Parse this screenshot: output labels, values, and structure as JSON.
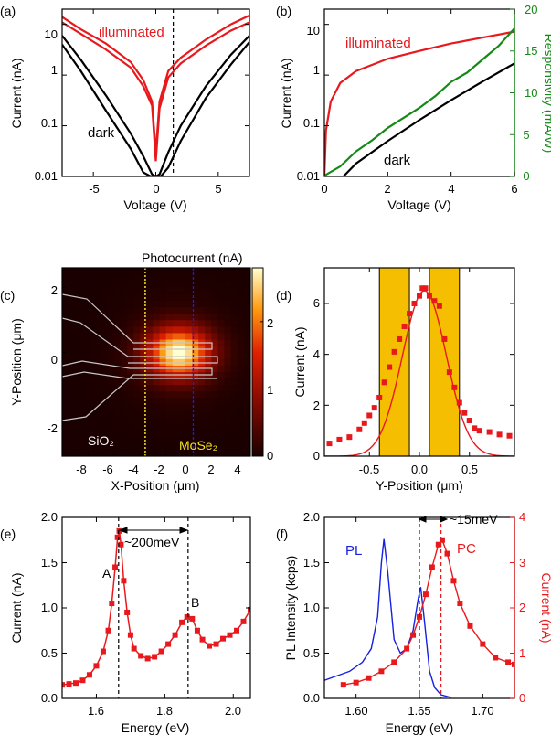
{
  "colors": {
    "red": "#e8191d",
    "black": "#000000",
    "green": "#138a16",
    "blue": "#1520e0",
    "gold": "#f6be00",
    "yellow": "#f2e61a"
  },
  "chart_data": [
    {
      "panel": "(a)",
      "type": "line",
      "xlabel": "Voltage (V)",
      "ylabel": "Current (nA)",
      "xlim": [
        -7.5,
        7.5
      ],
      "ylim": [
        0.01,
        20
      ],
      "yscale": "log",
      "xticks": [
        "-5",
        "0",
        "5"
      ],
      "yticks": [
        "0.01",
        "0.1",
        "1",
        "10"
      ],
      "vline_x": 1.4,
      "annotations": [
        "illuminated",
        "dark"
      ],
      "series": [
        {
          "label": "illuminated",
          "color": "#e8191d",
          "points": [
            [
              -7.5,
              14
            ],
            [
              -6,
              8
            ],
            [
              -4,
              4.2
            ],
            [
              -2,
              1.8
            ],
            [
              -1,
              0.8
            ],
            [
              -0.3,
              0.3
            ],
            [
              0,
              0.03
            ],
            [
              0.3,
              0.3
            ],
            [
              1,
              1.2
            ],
            [
              2,
              2.2
            ],
            [
              4,
              5
            ],
            [
              6,
              10
            ],
            [
              7.5,
              15
            ]
          ]
        },
        {
          "label": "illuminated",
          "color": "#e8191d",
          "points": [
            [
              -7.5,
              11
            ],
            [
              -6,
              6.5
            ],
            [
              -4,
              3.2
            ],
            [
              -2,
              1.4
            ],
            [
              -1,
              0.6
            ],
            [
              -0.3,
              0.25
            ],
            [
              0,
              0.02
            ],
            [
              0.3,
              0.22
            ],
            [
              1,
              0.9
            ],
            [
              2,
              1.7
            ],
            [
              4,
              3.8
            ],
            [
              6,
              7.5
            ],
            [
              7.5,
              11
            ]
          ]
        },
        {
          "label": "dark",
          "color": "#000000",
          "points": [
            [
              -7.5,
              6
            ],
            [
              -6,
              2
            ],
            [
              -4,
              0.4
            ],
            [
              -2,
              0.07
            ],
            [
              -1,
              0.025
            ],
            [
              -0.3,
              0.011
            ],
            [
              0,
              0.01
            ],
            [
              0.3,
              0.011
            ],
            [
              1,
              0.03
            ],
            [
              2,
              0.1
            ],
            [
              4,
              0.6
            ],
            [
              6,
              2.5
            ],
            [
              7.5,
              6
            ]
          ]
        },
        {
          "label": "dark",
          "color": "#000000",
          "points": [
            [
              -7.5,
              4
            ],
            [
              -6,
              1.2
            ],
            [
              -4,
              0.2
            ],
            [
              -2,
              0.035
            ],
            [
              -1,
              0.012
            ],
            [
              -0.4,
              0.01
            ],
            [
              0.4,
              0.01
            ],
            [
              1,
              0.015
            ],
            [
              2,
              0.05
            ],
            [
              4,
              0.35
            ],
            [
              6,
              1.6
            ],
            [
              7.5,
              4.5
            ]
          ]
        }
      ]
    },
    {
      "panel": "(b)",
      "type": "line",
      "xlabel": "Voltage (V)",
      "ylabel": "Current (nA)",
      "y2label": "Responsivity (mA/W)",
      "xlim": [
        0,
        6
      ],
      "ylim": [
        0.01,
        20
      ],
      "yscale": "log",
      "y2lim": [
        0,
        20
      ],
      "xticks": [
        "0",
        "2",
        "4",
        "6"
      ],
      "yticks": [
        "0.01",
        "0.1",
        "1",
        "10"
      ],
      "y2ticks": [
        "0",
        "5",
        "10",
        "15",
        "20"
      ],
      "annotations": [
        "illuminated",
        "dark"
      ],
      "series": [
        {
          "label": "illuminated",
          "color": "#e8191d",
          "points": [
            [
              0,
              0.01
            ],
            [
              0.05,
              0.08
            ],
            [
              0.2,
              0.3
            ],
            [
              0.5,
              0.7
            ],
            [
              1,
              1.2
            ],
            [
              2,
              2.1
            ],
            [
              3,
              3
            ],
            [
              4,
              4.2
            ],
            [
              5,
              5.5
            ],
            [
              6,
              7.2
            ]
          ]
        },
        {
          "label": "dark",
          "color": "#000000",
          "points": [
            [
              0.6,
              0.01
            ],
            [
              1,
              0.018
            ],
            [
              2,
              0.05
            ],
            [
              3,
              0.13
            ],
            [
              4,
              0.32
            ],
            [
              5,
              0.75
            ],
            [
              6,
              1.7
            ]
          ]
        },
        {
          "label": "responsivity",
          "color": "#138a16",
          "axis": "right",
          "points": [
            [
              0,
              0.1
            ],
            [
              0.5,
              1.2
            ],
            [
              1,
              3
            ],
            [
              1.5,
              4.3
            ],
            [
              2,
              5.8
            ],
            [
              2.5,
              7
            ],
            [
              3,
              8.2
            ],
            [
              3.5,
              9.6
            ],
            [
              4,
              11.3
            ],
            [
              4.5,
              12.4
            ],
            [
              5,
              14
            ],
            [
              5.5,
              15.6
            ],
            [
              6,
              17.7
            ]
          ]
        }
      ]
    },
    {
      "panel": "(c)",
      "type": "heatmap",
      "title": "Photocurrent (nA)",
      "xlabel": "X-Position (μm)",
      "ylabel": "Y-Position (μm)",
      "xlim": [
        -10,
        4.5
      ],
      "ylim": [
        -3.2,
        2.6
      ],
      "zlim": [
        0,
        2.8
      ],
      "xticks": [
        "-8",
        "-6",
        "-4",
        "-2",
        "0",
        "2",
        "4"
      ],
      "yticks": [
        "-2",
        "0",
        "2"
      ],
      "zticks": [
        "0",
        "1",
        "2"
      ],
      "peak": {
        "x": -1,
        "y": 0,
        "value": 2.7
      },
      "yellow_line_x": -3.6,
      "blue_line_x": 0.1,
      "region_labels": [
        "SiO₂",
        "MoSe₂"
      ]
    },
    {
      "panel": "(d)",
      "type": "scatter",
      "xlabel": "Y-Position (μm)",
      "ylabel": "Current (nA)",
      "xlim": [
        -0.95,
        0.95
      ],
      "ylim": [
        0,
        7.4
      ],
      "xticks": [
        "-0.5",
        "0.0",
        "0.5"
      ],
      "yticks": [
        "0",
        "2",
        "4",
        "6"
      ],
      "bands": [
        [
          -0.4,
          -0.1
        ],
        [
          0.1,
          0.4
        ]
      ],
      "fit": {
        "center": 0.05,
        "amplitude": 6.5,
        "sigma": 0.22
      },
      "series": [
        {
          "label": "data",
          "color": "#e8191d",
          "points": [
            [
              -0.9,
              0.5
            ],
            [
              -0.8,
              0.65
            ],
            [
              -0.7,
              0.75
            ],
            [
              -0.6,
              1.05
            ],
            [
              -0.55,
              1.3
            ],
            [
              -0.5,
              1.6
            ],
            [
              -0.45,
              1.9
            ],
            [
              -0.4,
              2.3
            ],
            [
              -0.35,
              2.9
            ],
            [
              -0.3,
              3.5
            ],
            [
              -0.25,
              4.1
            ],
            [
              -0.2,
              4.6
            ],
            [
              -0.15,
              5.1
            ],
            [
              -0.1,
              5.6
            ],
            [
              -0.05,
              6
            ],
            [
              0,
              6.3
            ],
            [
              0.03,
              6.6
            ],
            [
              0.06,
              6.6
            ],
            [
              0.1,
              6.3
            ],
            [
              0.15,
              6.1
            ],
            [
              0.2,
              5.9
            ],
            [
              0.25,
              4.6
            ],
            [
              0.3,
              3.3
            ],
            [
              0.35,
              2.7
            ],
            [
              0.4,
              2.1
            ],
            [
              0.45,
              1.7
            ],
            [
              0.5,
              1.4
            ],
            [
              0.55,
              1.1
            ],
            [
              0.6,
              1
            ],
            [
              0.7,
              0.95
            ],
            [
              0.8,
              0.85
            ],
            [
              0.9,
              0.8
            ]
          ]
        }
      ]
    },
    {
      "panel": "(e)",
      "type": "line",
      "xlabel": "Energy (eV)",
      "ylabel": "Current (nA)",
      "xlim": [
        1.5,
        2.05
      ],
      "ylim": [
        0,
        2
      ],
      "xticks": [
        "1.6",
        "1.8",
        "2.0"
      ],
      "yticks": [
        "0.0",
        "0.5",
        "1.0",
        "1.5",
        "2.0"
      ],
      "vlines": [
        1.665,
        1.868
      ],
      "annotations": [
        "A",
        "B",
        "~200meV"
      ],
      "series": [
        {
          "label": "PC",
          "color": "#e8191d",
          "points": [
            [
              1.5,
              0.15
            ],
            [
              1.52,
              0.16
            ],
            [
              1.54,
              0.17
            ],
            [
              1.56,
              0.2
            ],
            [
              1.58,
              0.26
            ],
            [
              1.6,
              0.36
            ],
            [
              1.62,
              0.52
            ],
            [
              1.635,
              0.75
            ],
            [
              1.645,
              1.05
            ],
            [
              1.655,
              1.45
            ],
            [
              1.662,
              1.78
            ],
            [
              1.667,
              1.85
            ],
            [
              1.672,
              1.7
            ],
            [
              1.68,
              1.3
            ],
            [
              1.69,
              0.95
            ],
            [
              1.7,
              0.7
            ],
            [
              1.71,
              0.55
            ],
            [
              1.73,
              0.47
            ],
            [
              1.75,
              0.44
            ],
            [
              1.77,
              0.46
            ],
            [
              1.79,
              0.52
            ],
            [
              1.81,
              0.6
            ],
            [
              1.83,
              0.7
            ],
            [
              1.85,
              0.84
            ],
            [
              1.865,
              0.9
            ],
            [
              1.88,
              0.88
            ],
            [
              1.895,
              0.75
            ],
            [
              1.91,
              0.65
            ],
            [
              1.93,
              0.58
            ],
            [
              1.95,
              0.6
            ],
            [
              1.97,
              0.66
            ],
            [
              1.99,
              0.7
            ],
            [
              2.01,
              0.75
            ],
            [
              2.03,
              0.85
            ],
            [
              2.05,
              0.98
            ]
          ]
        }
      ]
    },
    {
      "panel": "(f)",
      "type": "line",
      "xlabel": "Energy (eV)",
      "ylabel": "PL Intensity (kcps)",
      "y2label": "Current (nA)",
      "xlim": [
        1.575,
        1.725
      ],
      "ylim": [
        0,
        2
      ],
      "y2lim": [
        0,
        4
      ],
      "xticks": [
        "1.60",
        "1.65",
        "1.70"
      ],
      "yticks": [
        "0.0",
        "0.5",
        "1.0",
        "1.5",
        "2.0"
      ],
      "y2ticks": [
        "0",
        "1",
        "2",
        "3",
        "4"
      ],
      "vlines": [
        1.65,
        1.667
      ],
      "annotations": [
        "PL",
        "PC",
        "~15meV"
      ],
      "series": [
        {
          "label": "PL",
          "color": "#1520e0",
          "points": [
            [
              1.575,
              0.2
            ],
            [
              1.585,
              0.25
            ],
            [
              1.595,
              0.3
            ],
            [
              1.605,
              0.4
            ],
            [
              1.612,
              0.55
            ],
            [
              1.617,
              0.9
            ],
            [
              1.62,
              1.5
            ],
            [
              1.622,
              1.76
            ],
            [
              1.625,
              1.4
            ],
            [
              1.63,
              0.65
            ],
            [
              1.635,
              0.5
            ],
            [
              1.64,
              0.55
            ],
            [
              1.645,
              0.75
            ],
            [
              1.649,
              1.1
            ],
            [
              1.651,
              1.23
            ],
            [
              1.654,
              0.85
            ],
            [
              1.658,
              0.3
            ],
            [
              1.662,
              0.12
            ],
            [
              1.667,
              0.04
            ],
            [
              1.675,
              0.01
            ]
          ]
        },
        {
          "label": "PC",
          "color": "#e8191d",
          "axis": "right",
          "points": [
            [
              1.59,
              0.3
            ],
            [
              1.6,
              0.35
            ],
            [
              1.61,
              0.45
            ],
            [
              1.62,
              0.6
            ],
            [
              1.63,
              0.8
            ],
            [
              1.64,
              1.1
            ],
            [
              1.645,
              1.4
            ],
            [
              1.65,
              1.8
            ],
            [
              1.655,
              2.3
            ],
            [
              1.66,
              2.9
            ],
            [
              1.665,
              3.4
            ],
            [
              1.668,
              3.5
            ],
            [
              1.672,
              3.2
            ],
            [
              1.677,
              2.6
            ],
            [
              1.682,
              2.1
            ],
            [
              1.69,
              1.6
            ],
            [
              1.7,
              1.2
            ],
            [
              1.71,
              0.9
            ],
            [
              1.72,
              0.8
            ],
            [
              1.725,
              0.75
            ]
          ]
        }
      ]
    }
  ]
}
